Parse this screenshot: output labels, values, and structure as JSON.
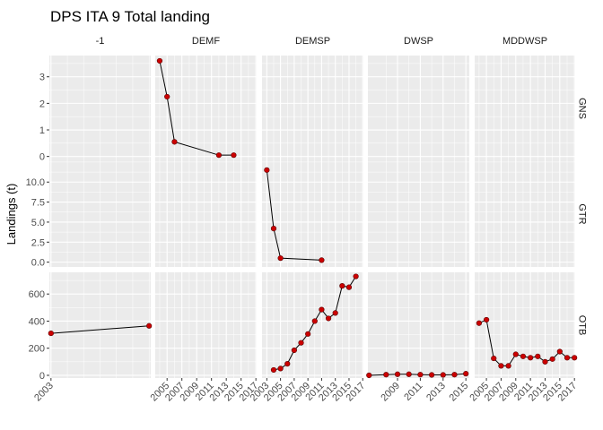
{
  "chart_data": {
    "type": "line",
    "title": "DPS ITA 9 Total landing",
    "ylabel": "Landings (t)",
    "xlabel": "",
    "facet_cols": [
      "-1",
      "DEMF",
      "DEMSP",
      "DWSP",
      "MDDWSP"
    ],
    "facet_rows": [
      "GNS",
      "GTR",
      "OTB"
    ],
    "row_scales": {
      "GNS": {
        "ylim": [
          -0.18,
          3.8
        ],
        "ticks": [
          0,
          1,
          2,
          3
        ],
        "tick_labels": [
          "0",
          "1",
          "2",
          "3"
        ]
      },
      "GTR": {
        "ylim": [
          -0.6,
          12.6
        ],
        "ticks": [
          0,
          2.5,
          5,
          7.5,
          10
        ],
        "tick_labels": [
          "0.0",
          "2.5",
          "5.0",
          "7.5",
          "10.0"
        ]
      },
      "OTB": {
        "ylim": [
          -20,
          760
        ],
        "ticks": [
          0,
          200,
          400,
          600
        ],
        "tick_labels": [
          "0",
          "200",
          "400",
          "600"
        ]
      }
    },
    "col_scales": {
      "-1": {
        "xlim": [
          2002.9,
          2009.1
        ],
        "ticks": [
          2003
        ],
        "tick_labels": [
          "2003"
        ]
      },
      "DEMF": {
        "xlim": [
          2003.4,
          2017.1
        ],
        "ticks": [
          2005,
          2007,
          2009,
          2011,
          2013,
          2015,
          2017
        ],
        "tick_labels": [
          "2005",
          "2007",
          "2009",
          "2011",
          "2013",
          "2015",
          "2017"
        ]
      },
      "DEMSP": {
        "xlim": [
          2002.3,
          2017.1
        ],
        "ticks": [
          2003,
          2005,
          2007,
          2009,
          2011,
          2013,
          2015,
          2017
        ],
        "tick_labels": [
          "2003",
          "2005",
          "2007",
          "2009",
          "2011",
          "2013",
          "2015",
          "2017"
        ]
      },
      "DWSP": {
        "xlim": [
          2006.4,
          2015.3
        ],
        "ticks": [
          2009,
          2011,
          2013,
          2015
        ],
        "tick_labels": [
          "2009",
          "2011",
          "2013",
          "2015"
        ]
      },
      "MDDWSP": {
        "xlim": [
          2003.4,
          2017.1
        ],
        "ticks": [
          2005,
          2007,
          2009,
          2011,
          2013,
          2015,
          2017
        ],
        "tick_labels": [
          "2005",
          "2007",
          "2009",
          "2011",
          "2013",
          "2015",
          "2017"
        ]
      }
    },
    "panels": [
      {
        "row": "GNS",
        "col": "DEMF",
        "x": [
          2004,
          2005,
          2006,
          2012,
          2014
        ],
        "y": [
          3.6,
          2.25,
          0.55,
          0.05,
          0.05
        ]
      },
      {
        "row": "GTR",
        "col": "DEMSP",
        "x": [
          2003,
          2004,
          2005,
          2011
        ],
        "y": [
          11.5,
          4.2,
          0.5,
          0.25
        ]
      },
      {
        "row": "OTB",
        "col": "-1",
        "x": [
          2003,
          2009
        ],
        "y": [
          310,
          365
        ]
      },
      {
        "row": "OTB",
        "col": "DEMSP",
        "x": [
          2004,
          2005,
          2006,
          2007,
          2008,
          2009,
          2010,
          2011,
          2012,
          2013,
          2014,
          2015,
          2016
        ],
        "y": [
          40,
          50,
          85,
          185,
          240,
          305,
          400,
          485,
          420,
          460,
          660,
          650,
          730
        ]
      },
      {
        "row": "OTB",
        "col": "DWSP",
        "x": [
          2006.5,
          2008,
          2009,
          2010,
          2011,
          2012,
          2013,
          2014,
          2015
        ],
        "y": [
          0,
          5,
          8,
          8,
          5,
          3,
          3,
          5,
          12
        ]
      },
      {
        "row": "OTB",
        "col": "MDDWSP",
        "x": [
          2004,
          2005,
          2006,
          2007,
          2008,
          2009,
          2010,
          2011,
          2012,
          2013,
          2014,
          2015,
          2016,
          2017
        ],
        "y": [
          385,
          410,
          125,
          70,
          70,
          155,
          140,
          130,
          140,
          100,
          120,
          175,
          130,
          130
        ]
      }
    ],
    "grid": true,
    "colors": {
      "point": "#cc0000",
      "line": "#000000",
      "panel_bg": "#ebebeb",
      "grid_major": "#ffffff",
      "strip_bg": "#ffffff"
    }
  }
}
